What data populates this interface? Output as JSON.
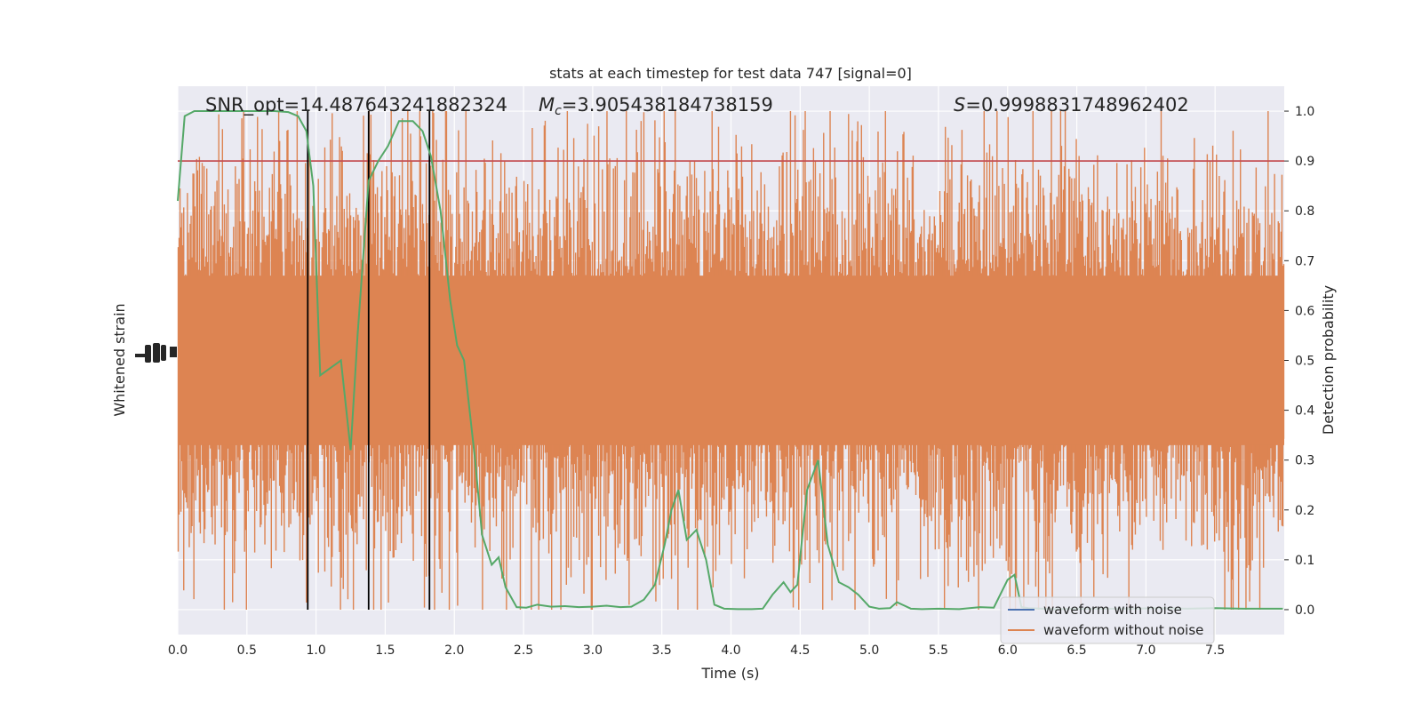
{
  "chart_data": {
    "type": "line",
    "title": "stats at each timestep for test data 747 [signal=0]",
    "xlabel": "Time (s)",
    "ylabel_left": "Whitened strain",
    "ylabel_right": "Detection probability",
    "xlim": [
      0,
      8
    ],
    "ylim_right": [
      -0.05,
      1.05
    ],
    "x_ticks": [
      "0.0",
      "0.5",
      "1.0",
      "1.5",
      "2.0",
      "2.5",
      "3.0",
      "3.5",
      "4.0",
      "4.5",
      "5.0",
      "5.5",
      "6.0",
      "6.5",
      "7.0",
      "7.5"
    ],
    "y_ticks_right": [
      "0.0",
      "0.1",
      "0.2",
      "0.3",
      "0.4",
      "0.5",
      "0.6",
      "0.7",
      "0.8",
      "0.9",
      "1.0"
    ],
    "annotations": {
      "snr": "SNR_opt=14.487643241882324",
      "mc_symbol": "M",
      "mc_sub": "c",
      "mc_value": "=3.905438184738159",
      "s_symbol": "S",
      "s_value": "=0.9998831748962402"
    },
    "threshold": 0.9,
    "vlines": [
      0.94,
      1.38,
      1.82
    ],
    "legend": {
      "position": "lower-right",
      "entries": [
        "waveform with noise",
        "waveform without noise"
      ]
    },
    "colors": {
      "noise": "#4c72b0",
      "strain": "#dd8452",
      "probability": "#55a868",
      "threshold": "#c44e52",
      "vline": "#000000",
      "background": "#eaeaf2",
      "grid": "#ffffff"
    },
    "probability_series": {
      "name": "",
      "x": [
        0.0,
        0.05,
        0.12,
        0.3,
        0.5,
        0.7,
        0.8,
        0.87,
        0.93,
        0.98,
        1.03,
        1.08,
        1.18,
        1.25,
        1.3,
        1.38,
        1.45,
        1.52,
        1.6,
        1.65,
        1.7,
        1.77,
        1.83,
        1.9,
        1.97,
        2.02,
        2.07,
        2.15,
        2.2,
        2.27,
        2.32,
        2.37,
        2.45,
        2.52,
        2.6,
        2.7,
        2.8,
        2.9,
        3.0,
        3.1,
        3.2,
        3.28,
        3.37,
        3.45,
        3.52,
        3.57,
        3.62,
        3.68,
        3.75,
        3.82,
        3.88,
        3.95,
        4.05,
        4.15,
        4.23,
        4.3,
        4.38,
        4.43,
        4.48,
        4.55,
        4.63,
        4.7,
        4.78,
        4.85,
        4.92,
        5.0,
        5.07,
        5.15,
        5.2,
        5.3,
        5.38,
        5.5,
        5.65,
        5.8,
        5.9,
        6.0,
        6.05,
        6.1,
        6.15,
        6.25,
        6.35,
        6.5,
        6.7,
        6.9,
        7.1,
        7.3,
        7.5,
        7.7,
        7.99
      ],
      "values": [
        0.82,
        0.99,
        1.0,
        1.0,
        1.0,
        1.0,
        0.998,
        0.99,
        0.96,
        0.85,
        0.47,
        0.48,
        0.5,
        0.32,
        0.55,
        0.86,
        0.9,
        0.93,
        0.98,
        0.98,
        0.98,
        0.96,
        0.91,
        0.8,
        0.62,
        0.53,
        0.5,
        0.3,
        0.15,
        0.09,
        0.105,
        0.045,
        0.005,
        0.004,
        0.01,
        0.006,
        0.007,
        0.005,
        0.006,
        0.008,
        0.005,
        0.006,
        0.02,
        0.05,
        0.13,
        0.2,
        0.24,
        0.14,
        0.16,
        0.1,
        0.01,
        0.002,
        0.001,
        0.001,
        0.002,
        0.03,
        0.055,
        0.035,
        0.05,
        0.24,
        0.3,
        0.13,
        0.055,
        0.045,
        0.03,
        0.006,
        0.002,
        0.003,
        0.015,
        0.002,
        0.001,
        0.002,
        0.001,
        0.005,
        0.004,
        0.06,
        0.07,
        0.005,
        0.003,
        0.002,
        0.001,
        0.002,
        0.002,
        0.002,
        0.003,
        0.002,
        0.003,
        0.002,
        0.002
      ]
    },
    "strain_series": {
      "name": "waveform without noise",
      "seed": 747,
      "sample_count": 1200,
      "center": 0.5,
      "typical_amplitude": 0.16,
      "max_amplitude": 0.5
    }
  }
}
